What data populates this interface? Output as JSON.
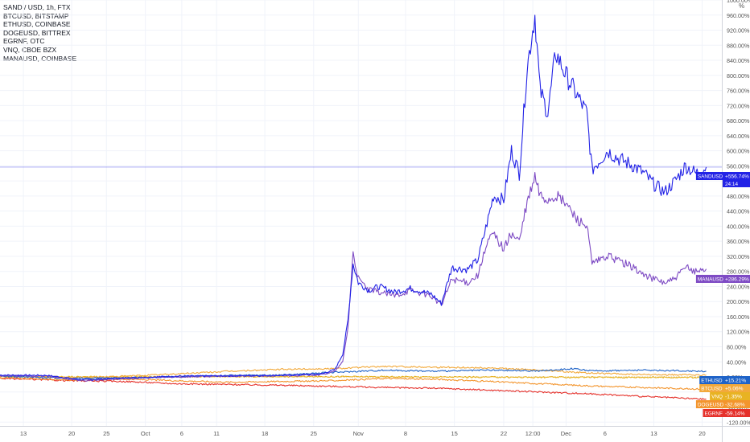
{
  "legend": [
    "SAND / USD, 1h, FTX",
    "BTCUSD, BITSTAMP",
    "ETHUSD, COINBASE",
    "DOGEUSD, BITTREX",
    "EGRNF, OTC",
    "VNQ, CBOE BZX",
    "MANAUSD, COINBASE"
  ],
  "axis_unit": "%",
  "chart_data": {
    "type": "line",
    "ylim": [
      -130,
      1000
    ],
    "y_ticks": [
      -120,
      -80,
      -40,
      0,
      40,
      80,
      120,
      160,
      200,
      240,
      280,
      320,
      360,
      400,
      440,
      480,
      520,
      560,
      600,
      640,
      680,
      720,
      760,
      800,
      840,
      880,
      920,
      960,
      1000
    ],
    "y_tick_labels": [
      "-120.00%",
      "-80.00%",
      "-40.00%",
      "0.00%",
      "40.00%",
      "80.00%",
      "120.00%",
      "160.00%",
      "200.00%",
      "240.00%",
      "280.00%",
      "320.00%",
      "360.00%",
      "400.00%",
      "440.00%",
      "480.00%",
      "520.00%",
      "560.00%",
      "600.00%",
      "640.00%",
      "680.00%",
      "720.00%",
      "760.00%",
      "800.00%",
      "840.00%",
      "880.00%",
      "920.00%",
      "960.00%",
      "1000.00%"
    ],
    "x_ticks": [
      {
        "label": "13",
        "t": 0.05
      },
      {
        "label": "20",
        "t": 0.98
      },
      {
        "label": "25",
        "t": 1.65
      },
      {
        "label": "Oct",
        "t": 2.4
      },
      {
        "label": "6",
        "t": 3.1
      },
      {
        "label": "11",
        "t": 3.77
      },
      {
        "label": "18",
        "t": 4.7
      },
      {
        "label": "25",
        "t": 5.64
      },
      {
        "label": "Nov",
        "t": 6.5
      },
      {
        "label": "8",
        "t": 7.41
      },
      {
        "label": "15",
        "t": 8.35
      },
      {
        "label": "22",
        "t": 9.3
      },
      {
        "label": "12:00",
        "t": 9.86
      },
      {
        "label": "Dec",
        "t": 10.5
      },
      {
        "label": "6",
        "t": 11.25
      },
      {
        "label": "13",
        "t": 12.19
      },
      {
        "label": "20",
        "t": 13.12
      }
    ],
    "x_range": [
      -0.4,
      13.5
    ],
    "series": [
      {
        "name": "SANDUSD",
        "color": "#2323e6",
        "last": "+556.74%",
        "countdown": "24:14",
        "points": [
          [
            -0.4,
            5
          ],
          [
            0.5,
            4
          ],
          [
            1.2,
            -8
          ],
          [
            2.0,
            -3
          ],
          [
            3.0,
            2
          ],
          [
            4.0,
            3
          ],
          [
            5.0,
            4
          ],
          [
            5.8,
            8
          ],
          [
            6.05,
            20
          ],
          [
            6.2,
            60
          ],
          [
            6.3,
            150
          ],
          [
            6.4,
            300
          ],
          [
            6.5,
            250
          ],
          [
            6.7,
            230
          ],
          [
            6.9,
            240
          ],
          [
            7.2,
            225
          ],
          [
            7.5,
            235
          ],
          [
            7.9,
            220
          ],
          [
            8.1,
            195
          ],
          [
            8.3,
            290
          ],
          [
            8.6,
            285
          ],
          [
            8.8,
            310
          ],
          [
            9.0,
            420
          ],
          [
            9.1,
            480
          ],
          [
            9.3,
            470
          ],
          [
            9.45,
            600
          ],
          [
            9.6,
            540
          ],
          [
            9.75,
            820
          ],
          [
            9.9,
            960
          ],
          [
            10.0,
            760
          ],
          [
            10.15,
            700
          ],
          [
            10.3,
            860
          ],
          [
            10.5,
            800
          ],
          [
            10.7,
            750
          ],
          [
            10.9,
            700
          ],
          [
            11.0,
            550
          ],
          [
            11.3,
            600
          ],
          [
            11.5,
            580
          ],
          [
            11.8,
            560
          ],
          [
            12.0,
            540
          ],
          [
            12.2,
            510
          ],
          [
            12.4,
            490
          ],
          [
            12.6,
            520
          ],
          [
            12.8,
            560
          ],
          [
            13.0,
            540
          ],
          [
            13.2,
            556.74
          ]
        ]
      },
      {
        "name": "MANAUSD",
        "color": "#7e4bc4",
        "last": "+286.29%",
        "points": [
          [
            -0.4,
            3
          ],
          [
            0.5,
            2
          ],
          [
            1.2,
            -10
          ],
          [
            2.0,
            -4
          ],
          [
            3.0,
            0
          ],
          [
            4.0,
            2
          ],
          [
            5.0,
            3
          ],
          [
            5.8,
            6
          ],
          [
            6.05,
            15
          ],
          [
            6.2,
            40
          ],
          [
            6.3,
            130
          ],
          [
            6.4,
            330
          ],
          [
            6.5,
            260
          ],
          [
            6.7,
            230
          ],
          [
            6.9,
            225
          ],
          [
            7.2,
            215
          ],
          [
            7.5,
            230
          ],
          [
            7.9,
            215
          ],
          [
            8.1,
            190
          ],
          [
            8.3,
            260
          ],
          [
            8.6,
            250
          ],
          [
            8.8,
            270
          ],
          [
            9.0,
            360
          ],
          [
            9.1,
            380
          ],
          [
            9.3,
            340
          ],
          [
            9.45,
            380
          ],
          [
            9.6,
            360
          ],
          [
            9.75,
            460
          ],
          [
            9.9,
            530
          ],
          [
            10.0,
            480
          ],
          [
            10.15,
            470
          ],
          [
            10.3,
            480
          ],
          [
            10.5,
            460
          ],
          [
            10.7,
            420
          ],
          [
            10.9,
            400
          ],
          [
            11.0,
            300
          ],
          [
            11.3,
            320
          ],
          [
            11.5,
            310
          ],
          [
            11.8,
            290
          ],
          [
            12.0,
            270
          ],
          [
            12.2,
            260
          ],
          [
            12.4,
            250
          ],
          [
            12.6,
            260
          ],
          [
            12.8,
            290
          ],
          [
            13.0,
            280
          ],
          [
            13.2,
            286.29
          ]
        ]
      },
      {
        "name": "ETHUSD",
        "color": "#1f63c8",
        "last": "+15.21%",
        "points": [
          [
            -0.4,
            2
          ],
          [
            1.0,
            -4
          ],
          [
            2.0,
            -2
          ],
          [
            3.0,
            0
          ],
          [
            4.0,
            4
          ],
          [
            5.0,
            5
          ],
          [
            6.0,
            12
          ],
          [
            7.0,
            18
          ],
          [
            8.0,
            15
          ],
          [
            9.0,
            18
          ],
          [
            10.0,
            16
          ],
          [
            10.6,
            22
          ],
          [
            11.0,
            16
          ],
          [
            12.0,
            18
          ],
          [
            13.2,
            15.21
          ]
        ]
      },
      {
        "name": "BTCUSD",
        "color": "#f2a93b",
        "last": "+5.06%",
        "points": [
          [
            -0.4,
            2
          ],
          [
            1.0,
            -2
          ],
          [
            2.0,
            2
          ],
          [
            3.0,
            8
          ],
          [
            4.0,
            15
          ],
          [
            5.0,
            20
          ],
          [
            6.0,
            22
          ],
          [
            7.0,
            28
          ],
          [
            8.0,
            26
          ],
          [
            9.0,
            24
          ],
          [
            10.0,
            18
          ],
          [
            11.0,
            10
          ],
          [
            12.0,
            6
          ],
          [
            13.2,
            5.06
          ]
        ]
      },
      {
        "name": "VNQ",
        "color": "#e8b323",
        "last": "-1.35%",
        "points": [
          [
            -0.4,
            1
          ],
          [
            2.0,
            0
          ],
          [
            4.0,
            1
          ],
          [
            6.0,
            1
          ],
          [
            8.0,
            0
          ],
          [
            10.0,
            -1
          ],
          [
            12.0,
            -1
          ],
          [
            13.2,
            -1.35
          ]
        ]
      },
      {
        "name": "DOGEUSD",
        "color": "#f3952d",
        "last": "-32.68%",
        "points": [
          [
            -0.4,
            -2
          ],
          [
            1.0,
            -8
          ],
          [
            2.0,
            -6
          ],
          [
            3.0,
            -10
          ],
          [
            4.0,
            -14
          ],
          [
            5.0,
            -12
          ],
          [
            6.0,
            -10
          ],
          [
            7.0,
            -4
          ],
          [
            8.0,
            -6
          ],
          [
            9.0,
            -12
          ],
          [
            10.0,
            -18
          ],
          [
            11.0,
            -24
          ],
          [
            12.0,
            -28
          ],
          [
            13.2,
            -32.68
          ]
        ]
      },
      {
        "name": "EGRNF",
        "color": "#e5312b",
        "last": "-59.14%",
        "points": [
          [
            -0.4,
            -4
          ],
          [
            1.0,
            -10
          ],
          [
            2.0,
            -12
          ],
          [
            3.0,
            -18
          ],
          [
            4.0,
            -20
          ],
          [
            5.0,
            -22
          ],
          [
            6.0,
            -25
          ],
          [
            7.0,
            -28
          ],
          [
            8.0,
            -30
          ],
          [
            9.0,
            -35
          ],
          [
            10.0,
            -40
          ],
          [
            11.0,
            -45
          ],
          [
            12.0,
            -52
          ],
          [
            13.2,
            -59.14
          ]
        ]
      }
    ]
  }
}
